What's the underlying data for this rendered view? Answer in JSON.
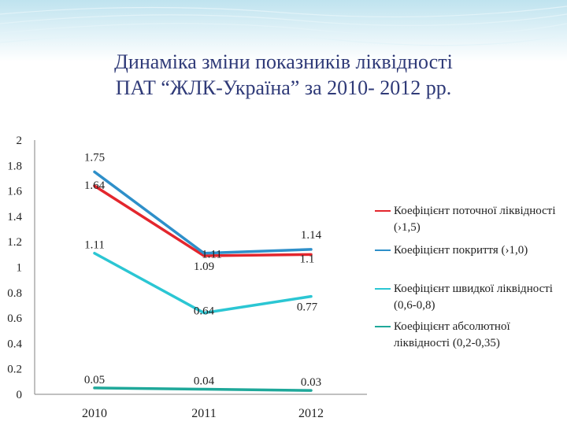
{
  "title": {
    "line1": "Динаміка зміни показників ліквідності",
    "line2": "ПАТ “ЖЛК-Україна” за 2010- 2012 рр."
  },
  "colors": {
    "title": "#2f3a78",
    "banner_top": "#bfe3ef",
    "banner_stripes": "#d9eff6"
  },
  "chart_data": {
    "type": "line",
    "x": [
      "2010",
      "2011",
      "2012"
    ],
    "ylim": [
      0,
      2
    ],
    "y_ticks": [
      "0",
      "0.2",
      "0.4",
      "0.6",
      "0.8",
      "1",
      "1.2",
      "1.4",
      "1.6",
      "1.8",
      "2"
    ],
    "grid": false,
    "legend_position": "right",
    "series": [
      {
        "name": "Коефіцієнт поточної ліквідності (›1,5)",
        "values": [
          1.64,
          1.09,
          1.1
        ],
        "color": "#e3262d"
      },
      {
        "name": "Коефіцієнт покриття (›1,0)",
        "values": [
          1.75,
          1.11,
          1.14
        ],
        "color": "#2e8fc9"
      },
      {
        "name": "Коефіцієнт швидкої ліквідності (0,6-0,8)",
        "values": [
          1.11,
          0.64,
          0.77
        ],
        "color": "#2bc6d3"
      },
      {
        "name": "Коефіцієнт абсолютної ліквідності (0,2-0,35)",
        "values": [
          0.05,
          0.04,
          0.03
        ],
        "color": "#1fa89a"
      }
    ],
    "data_labels": [
      {
        "text": "1.75",
        "x": "2010",
        "y": 1.75
      },
      {
        "text": "1.64",
        "x": "2010",
        "y": 1.64
      },
      {
        "text": "1.11",
        "x": "2010",
        "y": 1.11
      },
      {
        "text": "0.05",
        "x": "2010",
        "y": 0.05
      },
      {
        "text": "1.11",
        "x": "2011",
        "y": 1.11
      },
      {
        "text": "1.09",
        "x": "2011",
        "y": 1.09
      },
      {
        "text": "0.64",
        "x": "2011",
        "y": 0.64
      },
      {
        "text": "0.04",
        "x": "2011",
        "y": 0.04
      },
      {
        "text": "1.14",
        "x": "2012",
        "y": 1.14
      },
      {
        "text": "1.1",
        "x": "2012",
        "y": 1.1
      },
      {
        "text": "0.77",
        "x": "2012",
        "y": 0.77
      },
      {
        "text": "0.03",
        "x": "2012",
        "y": 0.03
      }
    ]
  }
}
